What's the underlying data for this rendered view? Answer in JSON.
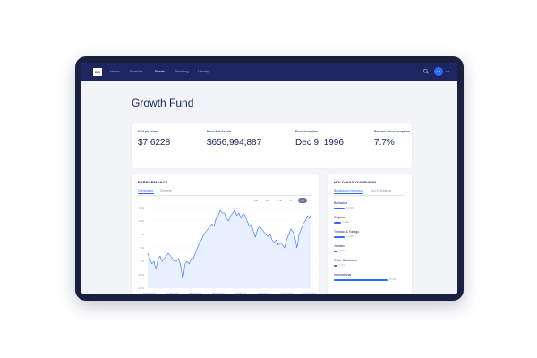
{
  "nav": {
    "logo": "DC",
    "items": [
      {
        "label": "Home",
        "active": false
      },
      {
        "label": "Portfolio",
        "active": false
      },
      {
        "label": "Funds",
        "active": true
      },
      {
        "label": "Planning",
        "active": false
      },
      {
        "label": "Library",
        "active": false
      }
    ],
    "avatar_initials": "AM",
    "icons": [
      "search-icon",
      "chevron-down-icon"
    ]
  },
  "page": {
    "title": "Growth Fund"
  },
  "kpis": [
    {
      "label": "NAV per share",
      "value": "$7.6228"
    },
    {
      "label": "Fund Net Assets",
      "value": "$656,994,887"
    },
    {
      "label": "Fund Inception",
      "value": "Dec 9, 1996"
    },
    {
      "label": "Returns since inception",
      "value": "7.7%"
    }
  ],
  "performance": {
    "title": "PERFORMANCE",
    "tabs": [
      {
        "label": "Cumulative",
        "active": true
      },
      {
        "label": "Discrete",
        "active": false
      }
    ],
    "ranges": [
      {
        "label": "1M",
        "active": false
      },
      {
        "label": "3M",
        "active": false
      },
      {
        "label": "YTD",
        "active": false
      },
      {
        "label": "1Y",
        "active": false
      },
      {
        "label": "All",
        "active": true
      }
    ]
  },
  "holdings": {
    "title": "HOLDINGS OVERVIEW",
    "tabs": [
      {
        "label": "Breakdown by region",
        "active": true
      },
      {
        "label": "Top 5 Holdings",
        "active": false
      }
    ],
    "regions": [
      {
        "name": "Barbados",
        "pct": 0.12,
        "pct_label": "12.00%"
      },
      {
        "name": "Guyana",
        "pct": 0.08,
        "pct_label": "8.00%"
      },
      {
        "name": "Trinidad & Tobago",
        "pct": 0.12,
        "pct_label": "12.00%"
      },
      {
        "name": "Jamaica",
        "pct": 0.04,
        "pct_label": "4.00%"
      },
      {
        "name": "Other Caribbean",
        "pct": 0.04,
        "pct_label": "4.00%"
      },
      {
        "name": "International",
        "pct": 0.6,
        "pct_label": "60.00%"
      }
    ]
  },
  "colors": {
    "nav_bg": "#1d2660",
    "accent": "#2d6bff",
    "title": "#1d2660",
    "line": "#2d6bff",
    "area": "#e4ecff"
  },
  "chart_data": {
    "type": "area",
    "y_ticks": [
      "15%",
      "10%",
      "5%",
      "0%",
      "-5%",
      "-10%",
      "-15%"
    ],
    "x_ticks": [
      "01/08/2018",
      "01/05/2019",
      "08/02/2020",
      "08/11/2020",
      "11/08/2021",
      "11/05/2022",
      "02/02/2023",
      "02/11/2023"
    ],
    "ylim": [
      -15,
      15
    ],
    "grid": true,
    "series": [
      {
        "values": [
          -2,
          -4,
          -6,
          -5,
          -8,
          -4,
          -3,
          -5,
          -4,
          -3,
          -2,
          -3,
          -4,
          -5,
          -5,
          -4,
          -7,
          -12,
          -6,
          -5,
          -6,
          -4,
          -4,
          -2,
          0,
          2,
          3,
          5,
          6,
          7,
          8,
          9,
          8,
          11,
          12,
          14,
          13,
          13,
          11,
          10,
          12,
          13,
          14,
          12,
          13,
          11,
          13,
          12,
          10,
          8,
          9,
          6,
          4,
          7,
          8,
          7,
          6,
          5,
          4,
          5,
          3,
          2,
          3,
          1,
          2,
          1,
          0,
          3,
          5,
          7,
          6,
          4,
          0,
          5,
          7,
          9,
          10,
          12,
          11,
          13
        ]
      }
    ]
  }
}
